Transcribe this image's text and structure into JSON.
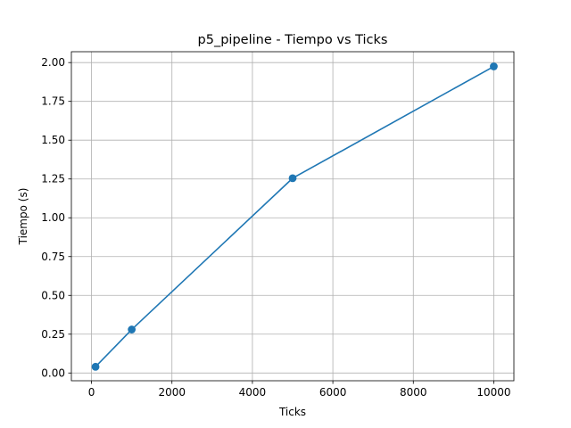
{
  "chart_data": {
    "type": "line",
    "title": "p5_pipeline - Tiempo vs Ticks",
    "xlabel": "Ticks",
    "ylabel": "Tiempo (s)",
    "xlim": [
      -500,
      10500
    ],
    "ylim": [
      -0.05,
      2.07
    ],
    "xticks": [
      0,
      2000,
      4000,
      6000,
      8000,
      10000
    ],
    "xtick_labels": [
      "0",
      "2000",
      "4000",
      "6000",
      "8000",
      "10000"
    ],
    "yticks": [
      0.0,
      0.25,
      0.5,
      0.75,
      1.0,
      1.25,
      1.5,
      1.75,
      2.0
    ],
    "ytick_labels": [
      "0.00",
      "0.25",
      "0.50",
      "0.75",
      "1.00",
      "1.25",
      "1.50",
      "1.75",
      "2.00"
    ],
    "grid": true,
    "series": [
      {
        "x": [
          100,
          1000,
          5000,
          10000
        ],
        "y": [
          0.04,
          0.28,
          1.255,
          1.975
        ],
        "color": "#1f77b4",
        "marker": "circle"
      }
    ]
  }
}
